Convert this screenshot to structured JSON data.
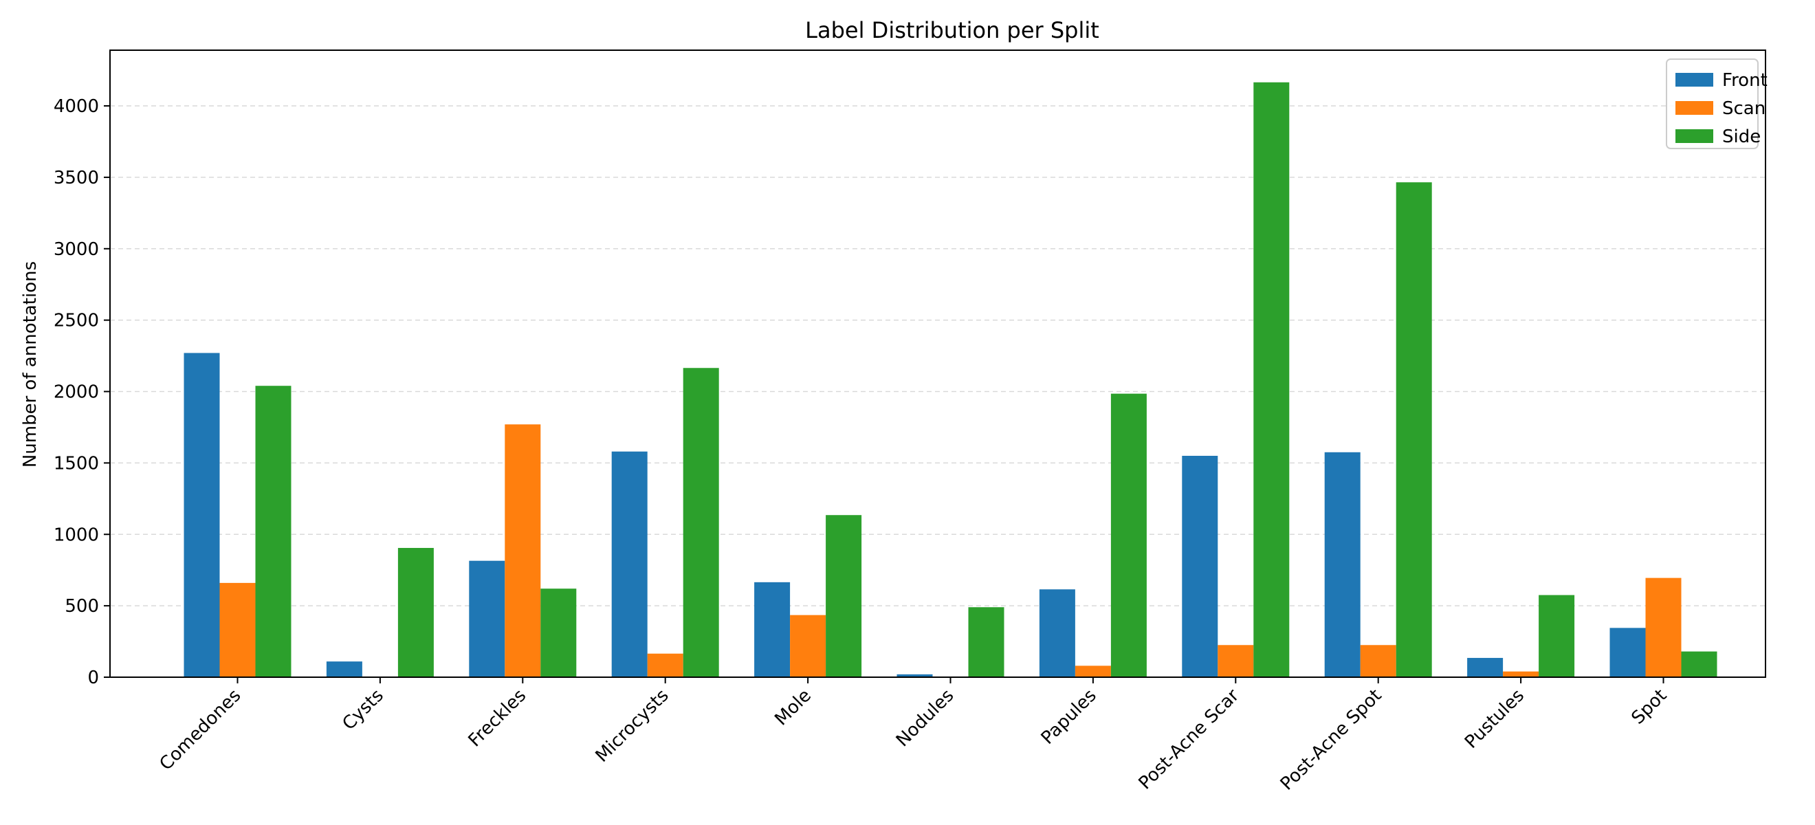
{
  "chart_data": {
    "type": "bar",
    "title": "Label Distribution per Split",
    "xlabel": "",
    "ylabel": "Number of annotations",
    "categories": [
      "Comedones",
      "Cysts",
      "Freckles",
      "Microcysts",
      "Mole",
      "Nodules",
      "Papules",
      "Post-Acne Scar",
      "Post-Acne Spot",
      "Pustules",
      "Spot"
    ],
    "series": [
      {
        "name": "Front",
        "color": "#1f77b4",
        "values": [
          2270,
          110,
          815,
          1580,
          665,
          20,
          615,
          1550,
          1575,
          135,
          345
        ]
      },
      {
        "name": "Scan",
        "color": "#ff7f0e",
        "values": [
          660,
          0,
          1770,
          165,
          435,
          0,
          80,
          225,
          225,
          40,
          695
        ]
      },
      {
        "name": "Side",
        "color": "#2ca02c",
        "values": [
          2040,
          905,
          620,
          2165,
          1135,
          490,
          1985,
          4165,
          3465,
          575,
          180
        ]
      }
    ],
    "ylim": [
      0,
      4390
    ],
    "yticks": [
      0,
      500,
      1000,
      1500,
      2000,
      2500,
      3000,
      3500,
      4000
    ],
    "grid": "y-dashed",
    "legend": "top-right"
  }
}
